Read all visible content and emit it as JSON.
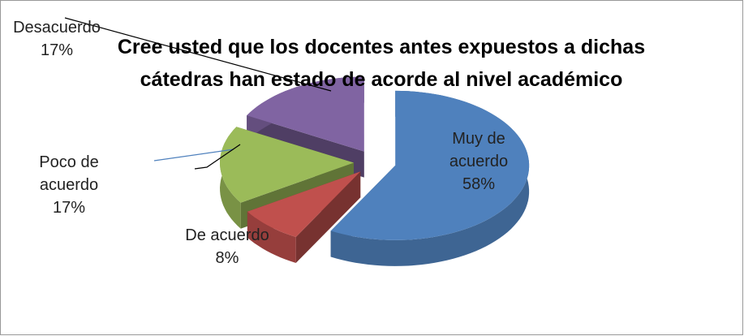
{
  "chart_data": {
    "type": "pie3d",
    "title": "Cree usted que los docentes antes expuestos a dichas cátedras han estado de acorde al nivel académico",
    "categories": [
      "Muy de acuerdo",
      "De acuerdo",
      "Poco de acuerdo",
      "Desacuerdo"
    ],
    "values": [
      58,
      8,
      17,
      17
    ],
    "value_labels": [
      "58%",
      "8%",
      "17%",
      "17%"
    ],
    "colors": [
      "#4f81bd",
      "#c0504d",
      "#9bbb59",
      "#8064a2"
    ]
  }
}
